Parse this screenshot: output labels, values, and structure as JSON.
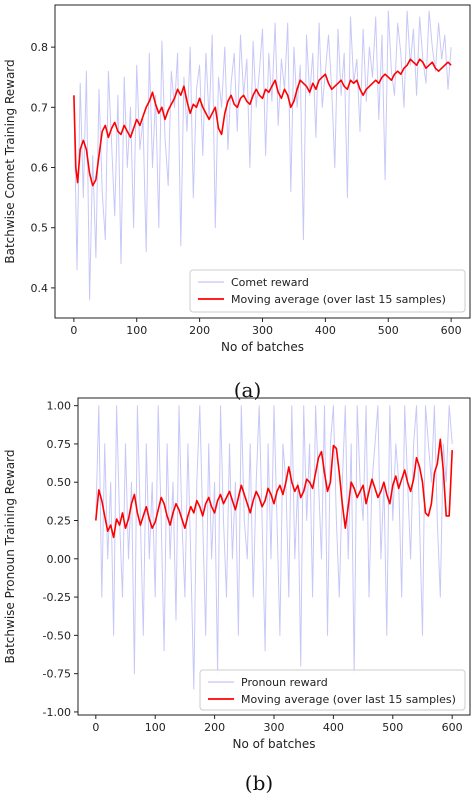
{
  "chart_data": [
    {
      "type": "line",
      "xlabel": "No of batches",
      "ylabel": "Batchwise Comet Training Reward",
      "caption": "(a)",
      "xlim": [
        -30,
        630
      ],
      "ylim": [
        0.35,
        0.87
      ],
      "xticks": [
        "0",
        "100",
        "200",
        "300",
        "400",
        "500",
        "600"
      ],
      "yticks": [
        "0.4",
        "0.5",
        "0.6",
        "0.7",
        "0.8"
      ],
      "legend_position": "lower-right",
      "series": [
        {
          "name": "Comet reward",
          "color": "#c8c8f8",
          "role": "raw",
          "x": [
            0,
            5,
            10,
            15,
            20,
            25,
            30,
            35,
            40,
            45,
            50,
            55,
            60,
            65,
            70,
            75,
            80,
            85,
            90,
            95,
            100,
            105,
            110,
            115,
            120,
            125,
            130,
            135,
            140,
            145,
            150,
            155,
            160,
            165,
            170,
            175,
            180,
            185,
            190,
            195,
            200,
            205,
            210,
            215,
            220,
            225,
            230,
            235,
            240,
            245,
            250,
            255,
            260,
            265,
            270,
            275,
            280,
            285,
            290,
            295,
            300,
            305,
            310,
            315,
            320,
            325,
            330,
            335,
            340,
            345,
            350,
            355,
            360,
            365,
            370,
            375,
            380,
            385,
            390,
            395,
            400,
            405,
            410,
            415,
            420,
            425,
            430,
            435,
            440,
            445,
            450,
            455,
            460,
            465,
            470,
            475,
            480,
            485,
            490,
            495,
            500,
            505,
            510,
            515,
            520,
            525,
            530,
            535,
            540,
            545,
            550,
            555,
            560,
            565,
            570,
            575,
            580,
            585,
            590,
            595,
            600
          ],
          "y": [
            0.72,
            0.43,
            0.74,
            0.55,
            0.76,
            0.38,
            0.62,
            0.45,
            0.73,
            0.56,
            0.48,
            0.76,
            0.64,
            0.52,
            0.72,
            0.44,
            0.75,
            0.6,
            0.7,
            0.5,
            0.77,
            0.63,
            0.68,
            0.46,
            0.79,
            0.6,
            0.72,
            0.5,
            0.81,
            0.65,
            0.57,
            0.76,
            0.7,
            0.79,
            0.47,
            0.75,
            0.66,
            0.8,
            0.55,
            0.73,
            0.77,
            0.62,
            0.79,
            0.68,
            0.82,
            0.5,
            0.75,
            0.7,
            0.8,
            0.63,
            0.74,
            0.79,
            0.66,
            0.82,
            0.72,
            0.78,
            0.6,
            0.81,
            0.7,
            0.76,
            0.83,
            0.62,
            0.79,
            0.71,
            0.84,
            0.67,
            0.78,
            0.73,
            0.84,
            0.56,
            0.8,
            0.7,
            0.77,
            0.48,
            0.82,
            0.72,
            0.79,
            0.65,
            0.84,
            0.7,
            0.76,
            0.82,
            0.73,
            0.6,
            0.83,
            0.72,
            0.79,
            0.55,
            0.85,
            0.74,
            0.78,
            0.66,
            0.83,
            0.71,
            0.8,
            0.75,
            0.85,
            0.68,
            0.82,
            0.58,
            0.86,
            0.76,
            0.72,
            0.84,
            0.79,
            0.7,
            0.86,
            0.77,
            0.83,
            0.72,
            0.85,
            0.78,
            0.74,
            0.86,
            0.8,
            0.76,
            0.84,
            0.78,
            0.82,
            0.73,
            0.8
          ]
        },
        {
          "name": "Moving average (over last 15 samples)",
          "color": "#ff0000",
          "role": "avg",
          "x": [
            0,
            3,
            6,
            10,
            15,
            20,
            25,
            30,
            35,
            40,
            45,
            50,
            55,
            60,
            65,
            70,
            75,
            80,
            85,
            90,
            95,
            100,
            105,
            110,
            115,
            120,
            125,
            130,
            135,
            140,
            145,
            150,
            155,
            160,
            165,
            170,
            175,
            180,
            185,
            190,
            195,
            200,
            205,
            210,
            215,
            220,
            225,
            230,
            235,
            240,
            245,
            250,
            255,
            260,
            265,
            270,
            275,
            280,
            285,
            290,
            295,
            300,
            305,
            310,
            315,
            320,
            325,
            330,
            335,
            340,
            345,
            350,
            355,
            360,
            365,
            370,
            375,
            380,
            385,
            390,
            395,
            400,
            405,
            410,
            415,
            420,
            425,
            430,
            435,
            440,
            445,
            450,
            455,
            460,
            465,
            470,
            475,
            480,
            485,
            490,
            495,
            500,
            505,
            510,
            515,
            520,
            525,
            530,
            535,
            540,
            545,
            550,
            555,
            560,
            565,
            570,
            575,
            580,
            585,
            590,
            595,
            600
          ],
          "y": [
            0.72,
            0.6,
            0.575,
            0.63,
            0.645,
            0.63,
            0.59,
            0.57,
            0.58,
            0.62,
            0.66,
            0.67,
            0.65,
            0.665,
            0.675,
            0.66,
            0.655,
            0.67,
            0.66,
            0.65,
            0.665,
            0.68,
            0.67,
            0.685,
            0.7,
            0.71,
            0.725,
            0.705,
            0.69,
            0.7,
            0.68,
            0.695,
            0.705,
            0.715,
            0.73,
            0.72,
            0.735,
            0.71,
            0.69,
            0.705,
            0.7,
            0.715,
            0.7,
            0.69,
            0.68,
            0.69,
            0.7,
            0.665,
            0.655,
            0.69,
            0.71,
            0.72,
            0.705,
            0.7,
            0.715,
            0.72,
            0.71,
            0.705,
            0.72,
            0.73,
            0.72,
            0.715,
            0.73,
            0.725,
            0.735,
            0.745,
            0.725,
            0.715,
            0.73,
            0.72,
            0.7,
            0.71,
            0.73,
            0.745,
            0.74,
            0.735,
            0.725,
            0.74,
            0.73,
            0.745,
            0.75,
            0.755,
            0.74,
            0.73,
            0.735,
            0.74,
            0.745,
            0.735,
            0.73,
            0.745,
            0.74,
            0.745,
            0.73,
            0.72,
            0.73,
            0.735,
            0.74,
            0.745,
            0.74,
            0.75,
            0.755,
            0.75,
            0.745,
            0.755,
            0.76,
            0.755,
            0.765,
            0.77,
            0.78,
            0.775,
            0.77,
            0.78,
            0.775,
            0.765,
            0.77,
            0.775,
            0.765,
            0.76,
            0.765,
            0.77,
            0.775,
            0.77
          ]
        }
      ]
    },
    {
      "type": "line",
      "xlabel": "No of batches",
      "ylabel": "Batchwise Pronoun Training Reward",
      "caption": "(b)",
      "xlim": [
        -30,
        630
      ],
      "ylim": [
        -1.02,
        1.05
      ],
      "xticks": [
        "0",
        "100",
        "200",
        "300",
        "400",
        "500",
        "600"
      ],
      "yticks": [
        "-1.00",
        "-0.75",
        "-0.50",
        "-0.25",
        "0.00",
        "0.25",
        "0.50",
        "0.75",
        "1.00"
      ],
      "legend_position": "lower-right",
      "series": [
        {
          "name": "Pronoun reward",
          "color": "#c8c8f8",
          "role": "raw",
          "x": [
            0,
            5,
            10,
            15,
            20,
            25,
            30,
            35,
            40,
            45,
            50,
            55,
            60,
            65,
            70,
            75,
            80,
            85,
            90,
            95,
            100,
            105,
            110,
            115,
            120,
            125,
            130,
            135,
            140,
            145,
            150,
            155,
            160,
            165,
            170,
            175,
            180,
            185,
            190,
            195,
            200,
            205,
            210,
            215,
            220,
            225,
            230,
            235,
            240,
            245,
            250,
            255,
            260,
            265,
            270,
            275,
            280,
            285,
            290,
            295,
            300,
            305,
            310,
            315,
            320,
            325,
            330,
            335,
            340,
            345,
            350,
            355,
            360,
            365,
            370,
            375,
            380,
            385,
            390,
            395,
            400,
            405,
            410,
            415,
            420,
            425,
            430,
            435,
            440,
            445,
            450,
            455,
            460,
            465,
            470,
            475,
            480,
            485,
            490,
            495,
            500,
            505,
            510,
            515,
            520,
            525,
            530,
            535,
            540,
            545,
            550,
            555,
            560,
            565,
            570,
            575,
            580,
            585,
            590,
            595,
            600
          ],
          "y": [
            0.25,
            1.0,
            -0.25,
            0.75,
            0.0,
            0.5,
            -0.5,
            1.0,
            0.25,
            -0.25,
            0.75,
            0.0,
            0.5,
            -0.75,
            1.0,
            0.25,
            -0.5,
            0.75,
            0.0,
            0.5,
            -0.25,
            1.0,
            0.25,
            -0.6,
            0.75,
            0.0,
            0.5,
            -0.4,
            1.0,
            0.25,
            -0.25,
            0.75,
            0.0,
            -0.85,
            0.5,
            1.0,
            0.25,
            -0.5,
            0.75,
            0.0,
            0.5,
            -0.75,
            1.0,
            0.25,
            -0.25,
            0.75,
            0.0,
            0.5,
            -0.5,
            1.0,
            0.25,
            0.0,
            0.75,
            -0.25,
            0.5,
            1.0,
            0.25,
            -0.6,
            0.75,
            0.0,
            1.0,
            0.25,
            -0.5,
            0.75,
            0.5,
            -0.25,
            1.0,
            0.0,
            0.5,
            -0.7,
            1.0,
            0.25,
            0.75,
            -0.25,
            1.0,
            0.5,
            0.0,
            1.0,
            -0.5,
            0.75,
            1.0,
            0.25,
            -0.25,
            0.5,
            1.0,
            0.0,
            0.75,
            -0.75,
            1.0,
            0.5,
            0.25,
            1.0,
            -0.25,
            0.5,
            0.75,
            1.0,
            0.0,
            0.5,
            -0.5,
            1.0,
            0.25,
            0.75,
            0.5,
            -0.25,
            1.0,
            0.5,
            0.0,
            0.75,
            1.0,
            0.25,
            -0.5,
            1.0,
            0.75,
            0.5,
            1.0,
            0.25,
            -0.25,
            0.75,
            0.5,
            1.0,
            0.75
          ]
        },
        {
          "name": "Moving average (over last 15 samples)",
          "color": "#ff0000",
          "role": "avg",
          "x": [
            0,
            5,
            10,
            15,
            20,
            25,
            30,
            35,
            40,
            45,
            50,
            55,
            60,
            65,
            70,
            75,
            80,
            85,
            90,
            95,
            100,
            105,
            110,
            115,
            120,
            125,
            130,
            135,
            140,
            145,
            150,
            155,
            160,
            165,
            170,
            175,
            180,
            185,
            190,
            195,
            200,
            205,
            210,
            215,
            220,
            225,
            230,
            235,
            240,
            245,
            250,
            255,
            260,
            265,
            270,
            275,
            280,
            285,
            290,
            295,
            300,
            305,
            310,
            315,
            320,
            325,
            330,
            335,
            340,
            345,
            350,
            355,
            360,
            365,
            370,
            375,
            380,
            385,
            390,
            395,
            400,
            405,
            410,
            415,
            420,
            425,
            430,
            435,
            440,
            445,
            450,
            455,
            460,
            465,
            470,
            475,
            480,
            485,
            490,
            495,
            500,
            505,
            510,
            515,
            520,
            525,
            530,
            535,
            540,
            545,
            550,
            555,
            560,
            565,
            570,
            575,
            580,
            585,
            590,
            595,
            600
          ],
          "y": [
            0.25,
            0.45,
            0.38,
            0.28,
            0.18,
            0.22,
            0.14,
            0.26,
            0.22,
            0.3,
            0.2,
            0.26,
            0.36,
            0.42,
            0.3,
            0.22,
            0.28,
            0.34,
            0.26,
            0.2,
            0.24,
            0.32,
            0.4,
            0.36,
            0.28,
            0.22,
            0.3,
            0.36,
            0.32,
            0.26,
            0.2,
            0.28,
            0.34,
            0.3,
            0.38,
            0.34,
            0.28,
            0.36,
            0.4,
            0.34,
            0.3,
            0.38,
            0.42,
            0.36,
            0.4,
            0.44,
            0.38,
            0.32,
            0.4,
            0.48,
            0.42,
            0.36,
            0.3,
            0.38,
            0.44,
            0.4,
            0.34,
            0.38,
            0.46,
            0.42,
            0.36,
            0.44,
            0.48,
            0.42,
            0.5,
            0.6,
            0.5,
            0.44,
            0.48,
            0.4,
            0.44,
            0.52,
            0.5,
            0.46,
            0.56,
            0.66,
            0.7,
            0.56,
            0.44,
            0.5,
            0.74,
            0.72,
            0.56,
            0.36,
            0.2,
            0.34,
            0.5,
            0.46,
            0.4,
            0.44,
            0.48,
            0.36,
            0.44,
            0.52,
            0.46,
            0.4,
            0.44,
            0.5,
            0.42,
            0.36,
            0.48,
            0.54,
            0.46,
            0.52,
            0.58,
            0.5,
            0.44,
            0.52,
            0.66,
            0.6,
            0.5,
            0.3,
            0.28,
            0.36,
            0.56,
            0.62,
            0.78,
            0.58,
            0.28,
            0.28,
            0.71
          ]
        }
      ]
    }
  ]
}
